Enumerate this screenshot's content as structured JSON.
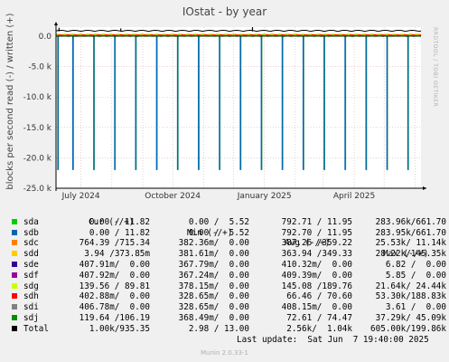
{
  "title": "IOstat - by year",
  "side_label": "RRDTOOL / TOBI OETIKER",
  "footer": "Munin 2.0.33-1",
  "last_update": "Last update:  Sat Jun  7 19:40:00 2025",
  "chart_data": {
    "type": "line",
    "title": "IOstat - by year",
    "ylabel": "blocks per second read (-) / written (+)",
    "ylim": [
      -25000,
      1500
    ],
    "yticks": [
      {
        "value": 0,
        "label": "0.0"
      },
      {
        "value": -5000,
        "label": "-5.0 k"
      },
      {
        "value": -10000,
        "label": "-10.0 k"
      },
      {
        "value": -15000,
        "label": "-15.0 k"
      },
      {
        "value": -20000,
        "label": "-20.0 k"
      },
      {
        "value": -25000,
        "label": "-25.0 k"
      }
    ],
    "xrange": [
      "2024-06-06",
      "2025-06-07"
    ],
    "xticks": [
      {
        "date": "2024-07-01",
        "label": "July 2024"
      },
      {
        "date": "2024-10-01",
        "label": "October 2024"
      },
      {
        "date": "2025-01-01",
        "label": "January 2025"
      },
      {
        "date": "2025-04-01",
        "label": "April 2025"
      }
    ],
    "month_lines": [
      "2024-07-01",
      "2024-08-01",
      "2024-09-01",
      "2024-10-01",
      "2024-11-01",
      "2024-12-01",
      "2025-01-01",
      "2025-02-01",
      "2025-03-01",
      "2025-04-01",
      "2025-05-01",
      "2025-06-01"
    ],
    "spikes": {
      "dates": [
        "2024-06-08",
        "2024-06-23",
        "2024-07-14",
        "2024-08-04",
        "2024-08-25",
        "2024-09-15",
        "2024-10-06",
        "2024-10-27",
        "2024-11-17",
        "2024-12-08",
        "2024-12-29",
        "2025-01-19",
        "2025-02-09",
        "2025-03-02",
        "2025-03-23",
        "2025-04-13",
        "2025-05-04",
        "2025-05-25"
      ],
      "values": [
        -22000,
        -22000,
        -22000,
        -22000,
        -22000,
        -22000,
        -22000,
        -22000,
        -22000,
        -22000,
        -22000,
        -22000,
        -22000,
        -22000,
        -22000,
        -22000,
        -22000,
        -22000
      ],
      "color": "#0066b3"
    },
    "total_write_level": 800,
    "grid": true,
    "series": [
      {
        "name": "sda",
        "color": "#00cc00"
      },
      {
        "name": "sdb",
        "color": "#0066b3"
      },
      {
        "name": "sdc",
        "color": "#ff8000"
      },
      {
        "name": "sdd",
        "color": "#ffcc00"
      },
      {
        "name": "sde",
        "color": "#330099"
      },
      {
        "name": "sdf",
        "color": "#990099"
      },
      {
        "name": "sdg",
        "color": "#ccff00"
      },
      {
        "name": "sdh",
        "color": "#ff0000"
      },
      {
        "name": "sdi",
        "color": "#808080"
      },
      {
        "name": "sdj",
        "color": "#008f00"
      },
      {
        "name": "Total",
        "color": "#000000"
      }
    ]
  },
  "legend": {
    "headers": [
      "Cur (-/+)",
      "Min (-/+)",
      "Avg (-/+)",
      "Max (-/+)"
    ],
    "rows": [
      {
        "name": "sda",
        "color": "#00cc00",
        "cur": "0.00 / 11.82",
        "min": "0.00 /  5.52",
        "avg": "792.71 / 11.95",
        "max": "283.96k/661.70"
      },
      {
        "name": "sdb",
        "color": "#0066b3",
        "cur": "0.00 / 11.82",
        "min": "0.00 /  5.52",
        "avg": "792.70 / 11.95",
        "max": "283.95k/661.70"
      },
      {
        "name": "sdc",
        "color": "#ff8000",
        "cur": "764.39 /715.34",
        "min": "382.36m/  0.00",
        "avg": "387.26 /359.22",
        "max": "25.53k/ 11.14k"
      },
      {
        "name": "sdd",
        "color": "#ffcc00",
        "cur": "3.94 /373.85m",
        "min": "381.61m/  0.00",
        "avg": "363.94 /349.33",
        "max": "28.22k/145.35k"
      },
      {
        "name": "sde",
        "color": "#330099",
        "cur": "407.91m/  0.00",
        "min": "367.79m/  0.00",
        "avg": "410.32m/  0.00",
        "max": "6.82 /  0.00"
      },
      {
        "name": "sdf",
        "color": "#990099",
        "cur": "407.92m/  0.00",
        "min": "367.24m/  0.00",
        "avg": "409.39m/  0.00",
        "max": "5.85 /  0.00"
      },
      {
        "name": "sdg",
        "color": "#ccff00",
        "cur": "139.56 / 89.81",
        "min": "378.15m/  0.00",
        "avg": "145.08 /189.76",
        "max": "21.64k/ 24.44k"
      },
      {
        "name": "sdh",
        "color": "#ff0000",
        "cur": "402.88m/  0.00",
        "min": "328.65m/  0.00",
        "avg": "66.46 / 70.60",
        "max": "53.30k/188.83k"
      },
      {
        "name": "sdi",
        "color": "#808080",
        "cur": "406.78m/  0.00",
        "min": "328.65m/  0.00",
        "avg": "408.15m/  0.00",
        "max": "3.61 /  0.00"
      },
      {
        "name": "sdj",
        "color": "#008f00",
        "cur": "119.64 /106.19",
        "min": "368.49m/  0.00",
        "avg": "72.61 / 74.47",
        "max": "37.29k/ 45.09k"
      },
      {
        "name": "Total",
        "color": "#000000",
        "cur": "1.00k/935.35",
        "min": "2.98 / 13.00",
        "avg": "2.56k/  1.04k",
        "max": "605.00k/199.86k"
      }
    ]
  }
}
